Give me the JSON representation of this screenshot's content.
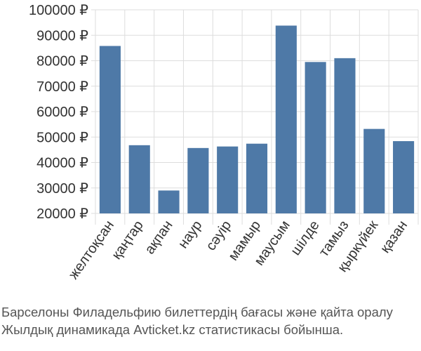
{
  "chart_data": {
    "type": "bar",
    "categories": [
      "желтоқсан",
      "қаңтар",
      "ақпан",
      "наур",
      "сәуір",
      "мамыр",
      "маусым",
      "шілде",
      "тамыз",
      "қыркүйек",
      "қазан"
    ],
    "values": [
      85800,
      46800,
      29000,
      45700,
      46300,
      47400,
      93800,
      79500,
      81000,
      53200,
      48400
    ],
    "ylim": [
      20000,
      100000
    ],
    "yticks": [
      20000,
      30000,
      40000,
      50000,
      60000,
      70000,
      80000,
      90000,
      100000
    ],
    "ytick_labels": [
      "20000 ₽",
      "30000 ₽",
      "40000 ₽",
      "50000 ₽",
      "60000 ₽",
      "70000 ₽",
      "80000 ₽",
      "90000 ₽",
      "100000 ₽"
    ],
    "grid": true,
    "bar_color": "#4e79a7",
    "grid_color": "#dddddd"
  },
  "caption": {
    "line1": "Барселоны Филадельфию билеттердің бағасы және қайта оралу",
    "line2": "Жылдық динамикада Avticket.kz статистикасы бойынша."
  }
}
